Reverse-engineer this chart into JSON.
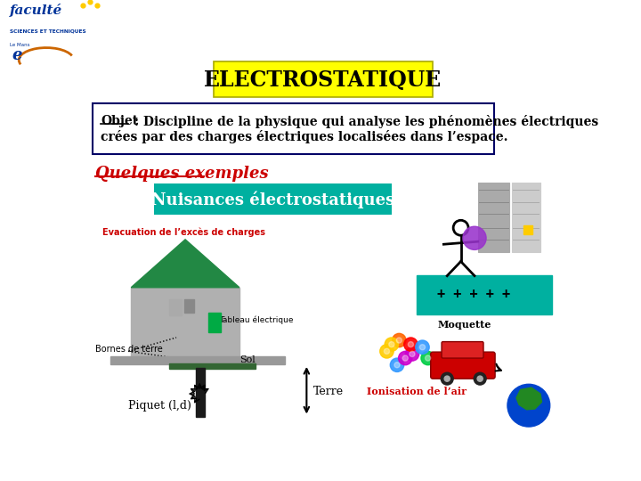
{
  "slide_bg": "#ffffff",
  "title_text": "ELECTROSTATIQUE",
  "title_bg": "#ffff00",
  "title_color": "#000000",
  "objet_word": "Objet",
  "objet_rest": " : Discipline de la physique qui analyse les phénomènes électriques",
  "objet_line2": "crées par des charges électriques localisées dans l’espace.",
  "quelques_text": "Quelques exemples",
  "quelques_color": "#cc0000",
  "nuisances_text": "Nuisances électrostatiques",
  "nuisances_bg": "#00b0a0",
  "evacuation_text": "Evacuation de l’excès de charges",
  "evacuation_color": "#cc0000",
  "moquette_text": "Moquette",
  "moquette_color": "#000000",
  "ionisation_text": "Ionisation de l’air",
  "ionisation_color": "#cc0000",
  "plus_signs": "+ + + + +",
  "piquet_text": "Piquet (l,d)",
  "terre_text": "Terre",
  "sol_text": "Sol",
  "bornes_text": "Bornes de terre",
  "tableau_text": "Tableau électrique"
}
